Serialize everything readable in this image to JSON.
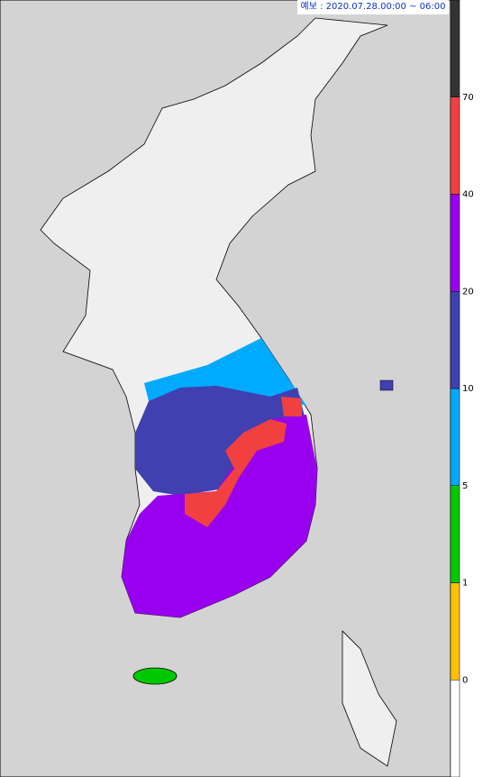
{
  "header": {
    "forecast_label": "예보 : 2020.07.28.00:00 ~ 06:00"
  },
  "legend": {
    "thresholds": [
      0,
      1,
      5,
      10,
      20,
      40,
      70
    ],
    "colors": [
      "#ffffff",
      "#ffbe00",
      "#00c800",
      "#00aaff",
      "#4040b0",
      "#9a00f0",
      "#f04040",
      "#333333"
    ]
  }
}
